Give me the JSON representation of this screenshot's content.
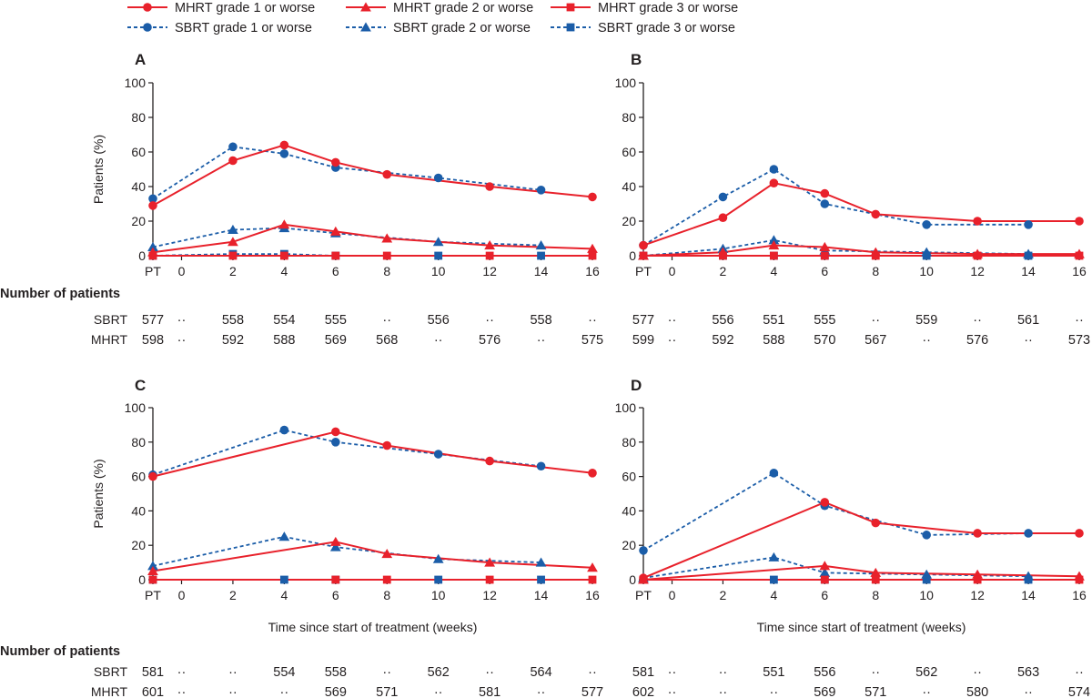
{
  "legend": [
    {
      "label": "MHRT grade 1 or worse",
      "group": "MHRT",
      "marker": "circle"
    },
    {
      "label": "MHRT grade 2 or worse",
      "group": "MHRT",
      "marker": "triangle"
    },
    {
      "label": "MHRT grade 3 or worse",
      "group": "MHRT",
      "marker": "square"
    },
    {
      "label": "SBRT grade 1 or worse",
      "group": "SBRT",
      "marker": "circle"
    },
    {
      "label": "SBRT grade 2 or worse",
      "group": "SBRT",
      "marker": "triangle"
    },
    {
      "label": "SBRT grade 3 or worse",
      "group": "SBRT",
      "marker": "square"
    }
  ],
  "colors": {
    "MHRT": "#e8212b",
    "SBRT": "#1b5da8",
    "axis": "#231f20"
  },
  "number_of_patients_label": "Number of patients",
  "row_labels": [
    "SBRT",
    "MHRT"
  ],
  "chart_data": [
    {
      "type": "line",
      "panel": "A",
      "ylabel": "Patients (%)",
      "xlabel": "",
      "ylim": [
        0,
        100
      ],
      "yticks": [
        "0",
        "20",
        "40",
        "60",
        "80",
        "100"
      ],
      "xticks": [
        "PT",
        "0",
        "2",
        "4",
        "6",
        "8",
        "10",
        "12",
        "14",
        "16"
      ],
      "x": [
        "PT",
        0,
        2,
        4,
        6,
        8,
        10,
        12,
        14,
        16
      ],
      "series": [
        {
          "name": "MHRT grade 1 or worse",
          "values": [
            29,
            null,
            55,
            64,
            54,
            47,
            null,
            40,
            null,
            34
          ]
        },
        {
          "name": "MHRT grade 2 or worse",
          "values": [
            2,
            null,
            8,
            18,
            14,
            10,
            null,
            6,
            null,
            4
          ]
        },
        {
          "name": "MHRT grade 3 or worse",
          "values": [
            0,
            null,
            0,
            0,
            0,
            0,
            null,
            0,
            null,
            0
          ]
        },
        {
          "name": "SBRT grade 1 or worse",
          "values": [
            33,
            null,
            63,
            59,
            51,
            null,
            45,
            null,
            38,
            null
          ]
        },
        {
          "name": "SBRT grade 2 or worse",
          "values": [
            5,
            null,
            15,
            16,
            13,
            null,
            8,
            null,
            6,
            null
          ]
        },
        {
          "name": "SBRT grade 3 or worse",
          "values": [
            0,
            null,
            1,
            1,
            0,
            null,
            0,
            null,
            0,
            null
          ]
        }
      ],
      "counts": {
        "SBRT": [
          "577",
          "··",
          "558",
          "554",
          "555",
          "··",
          "556",
          "··",
          "558",
          "··"
        ],
        "MHRT": [
          "598",
          "··",
          "592",
          "588",
          "569",
          "568",
          "··",
          "576",
          "··",
          "575"
        ]
      }
    },
    {
      "type": "line",
      "panel": "B",
      "ylabel": "",
      "xlabel": "",
      "ylim": [
        0,
        100
      ],
      "yticks": [
        "0",
        "20",
        "40",
        "60",
        "80",
        "100"
      ],
      "xticks": [
        "PT",
        "0",
        "2",
        "4",
        "6",
        "8",
        "10",
        "12",
        "14",
        "16"
      ],
      "x": [
        "PT",
        0,
        2,
        4,
        6,
        8,
        10,
        12,
        14,
        16
      ],
      "series": [
        {
          "name": "MHRT grade 1 or worse",
          "values": [
            6,
            null,
            22,
            42,
            36,
            24,
            null,
            20,
            null,
            20
          ]
        },
        {
          "name": "MHRT grade 2 or worse",
          "values": [
            0,
            null,
            2,
            6,
            5,
            2,
            null,
            1,
            null,
            1
          ]
        },
        {
          "name": "MHRT grade 3 or worse",
          "values": [
            0,
            null,
            0,
            0,
            0,
            0,
            null,
            0,
            null,
            0
          ]
        },
        {
          "name": "SBRT grade 1 or worse",
          "values": [
            6,
            null,
            34,
            50,
            30,
            null,
            18,
            null,
            18,
            null
          ]
        },
        {
          "name": "SBRT grade 2 or worse",
          "values": [
            0,
            null,
            4,
            9,
            3,
            null,
            2,
            null,
            1,
            null
          ]
        },
        {
          "name": "SBRT grade 3 or worse",
          "values": [
            0,
            null,
            0,
            0,
            0,
            null,
            0,
            null,
            0,
            null
          ]
        }
      ],
      "counts": {
        "SBRT": [
          "577",
          "··",
          "556",
          "551",
          "555",
          "··",
          "559",
          "··",
          "561",
          "··"
        ],
        "MHRT": [
          "599",
          "··",
          "592",
          "588",
          "570",
          "567",
          "··",
          "576",
          "··",
          "573"
        ]
      }
    },
    {
      "type": "line",
      "panel": "C",
      "ylabel": "Patients (%)",
      "xlabel": "Time since start of treatment (weeks)",
      "ylim": [
        0,
        100
      ],
      "yticks": [
        "0",
        "20",
        "40",
        "60",
        "80",
        "100"
      ],
      "xticks": [
        "PT",
        "0",
        "2",
        "4",
        "6",
        "8",
        "10",
        "12",
        "14",
        "16"
      ],
      "x": [
        "PT",
        0,
        2,
        4,
        6,
        8,
        10,
        12,
        14,
        16
      ],
      "series": [
        {
          "name": "MHRT grade 1 or worse",
          "values": [
            60,
            null,
            null,
            null,
            86,
            78,
            null,
            69,
            null,
            62
          ]
        },
        {
          "name": "MHRT grade 2 or worse",
          "values": [
            5,
            null,
            null,
            null,
            22,
            15,
            null,
            10,
            null,
            7
          ]
        },
        {
          "name": "MHRT grade 3 or worse",
          "values": [
            0,
            null,
            null,
            null,
            0,
            0,
            null,
            0,
            null,
            0
          ]
        },
        {
          "name": "SBRT grade 1 or worse",
          "values": [
            61,
            null,
            null,
            87,
            80,
            null,
            73,
            null,
            66,
            null
          ]
        },
        {
          "name": "SBRT grade 2 or worse",
          "values": [
            8,
            null,
            null,
            25,
            19,
            null,
            12,
            null,
            10,
            null
          ]
        },
        {
          "name": "SBRT grade 3 or worse",
          "values": [
            0,
            null,
            null,
            0,
            0,
            null,
            0,
            null,
            0,
            null
          ]
        }
      ],
      "counts": {
        "SBRT": [
          "581",
          "··",
          "··",
          "554",
          "558",
          "··",
          "562",
          "··",
          "564",
          "··"
        ],
        "MHRT": [
          "601",
          "··",
          "··",
          "··",
          "569",
          "571",
          "··",
          "581",
          "··",
          "577"
        ]
      }
    },
    {
      "type": "line",
      "panel": "D",
      "ylabel": "",
      "xlabel": "Time since start of treatment (weeks)",
      "ylim": [
        0,
        100
      ],
      "yticks": [
        "0",
        "20",
        "40",
        "60",
        "80",
        "100"
      ],
      "xticks": [
        "PT",
        "0",
        "2",
        "4",
        "6",
        "8",
        "10",
        "12",
        "14",
        "16"
      ],
      "x": [
        "PT",
        0,
        2,
        4,
        6,
        8,
        10,
        12,
        14,
        16
      ],
      "series": [
        {
          "name": "MHRT grade 1 or worse",
          "values": [
            1,
            null,
            null,
            null,
            45,
            33,
            null,
            27,
            null,
            27
          ]
        },
        {
          "name": "MHRT grade 2 or worse",
          "values": [
            0,
            null,
            null,
            null,
            8,
            4,
            null,
            3,
            null,
            2
          ]
        },
        {
          "name": "MHRT grade 3 or worse",
          "values": [
            0,
            null,
            null,
            null,
            0,
            0,
            null,
            0,
            null,
            0
          ]
        },
        {
          "name": "SBRT grade 1 or worse",
          "values": [
            17,
            null,
            null,
            62,
            43,
            null,
            26,
            null,
            27,
            null
          ]
        },
        {
          "name": "SBRT grade 2 or worse",
          "values": [
            1,
            null,
            null,
            13,
            4,
            null,
            3,
            null,
            2,
            null
          ]
        },
        {
          "name": "SBRT grade 3 or worse",
          "values": [
            0,
            null,
            null,
            0,
            0,
            null,
            0,
            null,
            0,
            null
          ]
        }
      ],
      "counts": {
        "SBRT": [
          "581",
          "··",
          "··",
          "551",
          "556",
          "··",
          "562",
          "··",
          "563",
          "··"
        ],
        "MHRT": [
          "602",
          "··",
          "··",
          "··",
          "569",
          "571",
          "··",
          "580",
          "··",
          "574"
        ]
      }
    }
  ]
}
